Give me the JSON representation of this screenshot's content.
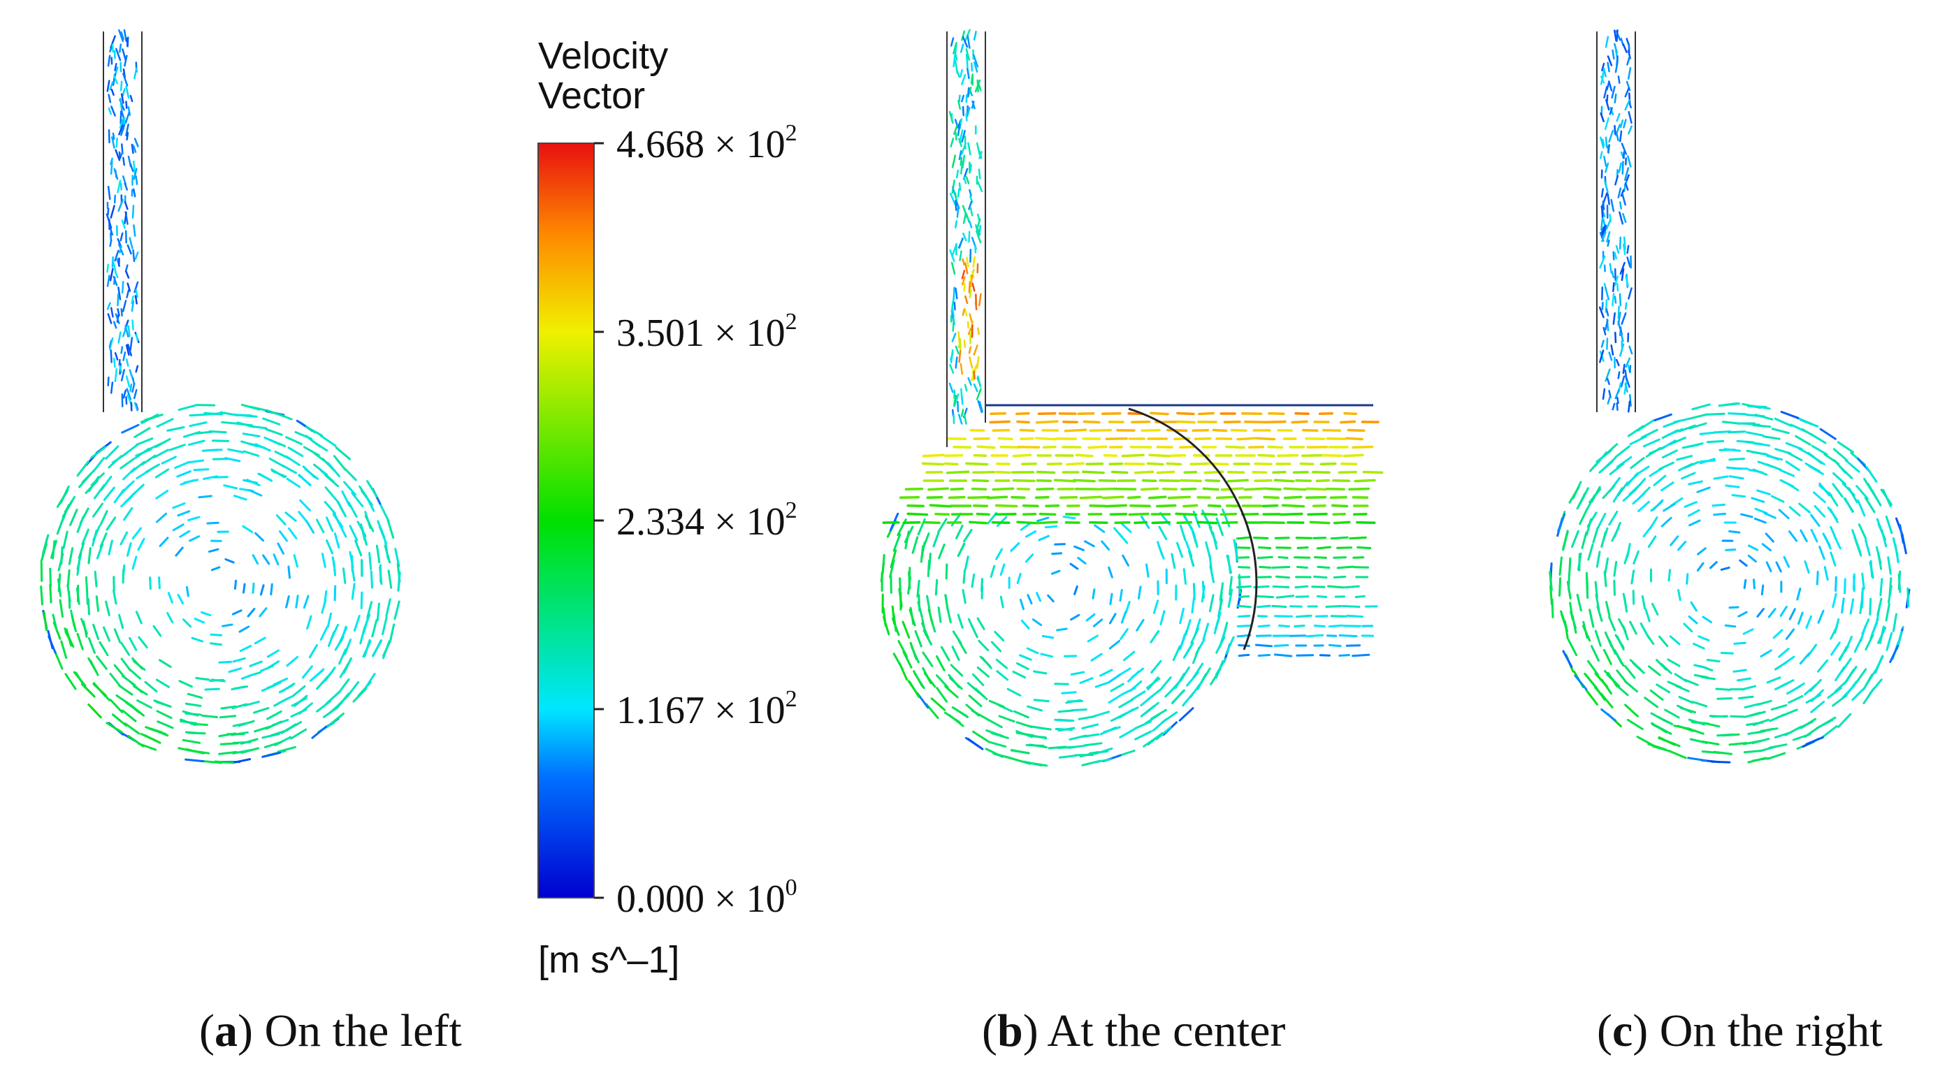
{
  "legend": {
    "title_line1": "Velocity",
    "title_line2": "Vector",
    "unit": "[m s^–1]",
    "min": 0.0,
    "max": 466.8,
    "ticks": [
      {
        "value": 466.8,
        "mantissa": "4.668",
        "exponent": "2"
      },
      {
        "value": 350.1,
        "mantissa": "3.501",
        "exponent": "2"
      },
      {
        "value": 233.4,
        "mantissa": "2.334",
        "exponent": "2"
      },
      {
        "value": 116.7,
        "mantissa": "1.167",
        "exponent": "2"
      },
      {
        "value": 0.0,
        "mantissa": "0.000",
        "exponent": "0"
      }
    ],
    "colormap": [
      "#0000d0",
      "#0070ff",
      "#00e6ff",
      "#00e000",
      "#f0f000",
      "#ff8800",
      "#e81010"
    ]
  },
  "panels": [
    {
      "id": "a",
      "letter": "a",
      "caption": "On the left"
    },
    {
      "id": "b",
      "letter": "b",
      "caption": "At the center"
    },
    {
      "id": "c",
      "letter": "c",
      "caption": "On the right"
    }
  ]
}
